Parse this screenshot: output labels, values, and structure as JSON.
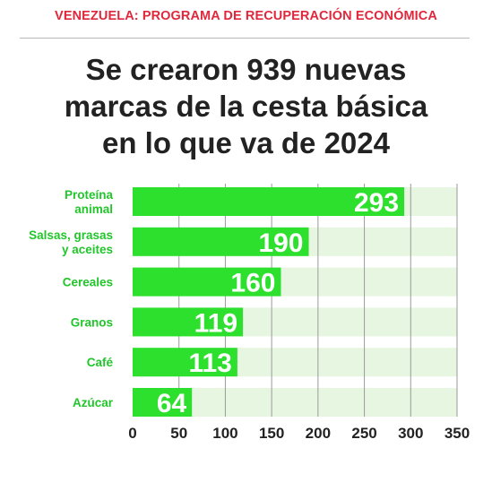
{
  "header": {
    "kicker": "VENEZUELA: PROGRAMA DE RECUPERACIÓN ECONÓMICA",
    "title_lines": [
      "Se crearon 939 nuevas",
      "marcas de la cesta básica",
      "en lo que va de 2024"
    ]
  },
  "colors": {
    "kicker": "#e0283c",
    "bar": "#2ee02e",
    "track": "#e6f6e0",
    "category_label": "#22c52b",
    "value_label": "#ffffff",
    "tick_label": "#222222",
    "gridline": "#9a9a9a"
  },
  "chart_data": {
    "type": "bar",
    "orientation": "horizontal",
    "categories": [
      [
        "Proteína",
        "animal"
      ],
      [
        "Salsas, grasas",
        "y aceites"
      ],
      [
        "Cereales"
      ],
      [
        "Granos"
      ],
      [
        "Café"
      ],
      [
        "Azúcar"
      ]
    ],
    "values": [
      293,
      190,
      160,
      119,
      113,
      64
    ],
    "xlim": [
      0,
      350
    ],
    "xticks": [
      0,
      50,
      100,
      150,
      200,
      250,
      300,
      350
    ],
    "grid": true,
    "title": "",
    "xlabel": "",
    "ylabel": ""
  }
}
